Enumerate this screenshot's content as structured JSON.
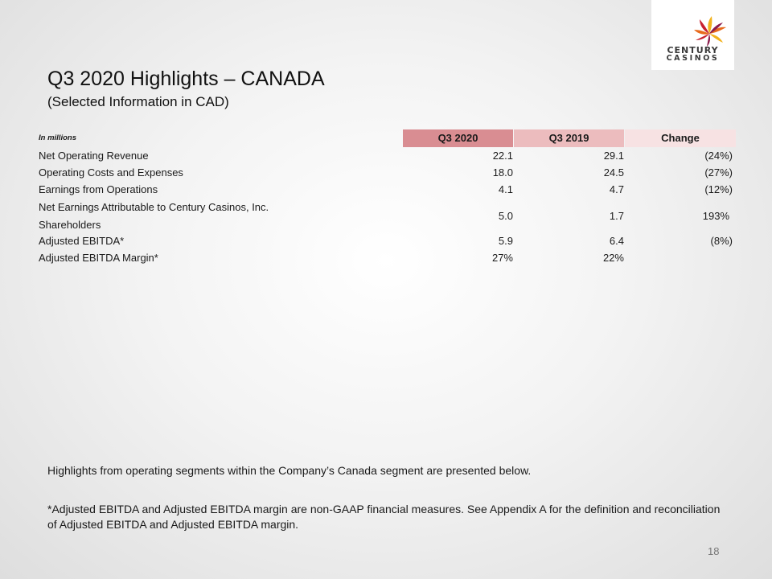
{
  "logo": {
    "line1": "CENTURY",
    "line2": "CASINOS",
    "colors": [
      "#f2b21b",
      "#e86a1c",
      "#c8202f",
      "#8b1a4a"
    ]
  },
  "title": "Q3 2020 Highlights – CANADA",
  "subtitle": "(Selected Information in CAD)",
  "table": {
    "label": "In millions",
    "headers": [
      "Q3 2020",
      "Q3 2019",
      "Change"
    ],
    "rows": [
      {
        "label": "Net Operating Revenue",
        "q3_2020": "22.1",
        "q3_2019": "29.1",
        "change": "(24%)"
      },
      {
        "label": "Operating Costs and Expenses",
        "q3_2020": "18.0",
        "q3_2019": "24.5",
        "change": "(27%)"
      },
      {
        "label": "Earnings from Operations",
        "q3_2020": "4.1",
        "q3_2019": "4.7",
        "change": "(12%)"
      },
      {
        "label": "Net Earnings Attributable to Century Casinos, Inc. Shareholders",
        "q3_2020": "5.0",
        "q3_2019": "1.7",
        "change": "193%"
      },
      {
        "label": "Adjusted EBITDA*",
        "q3_2020": "5.9",
        "q3_2019": "6.4",
        "change": "(8%)"
      },
      {
        "label": "Adjusted EBITDA Margin*",
        "q3_2020": "27%",
        "q3_2019": "22%",
        "change": ""
      }
    ]
  },
  "footer": {
    "highlights": "Highlights from operating segments within the Company’s Canada segment are presented below.",
    "note": "*Adjusted EBITDA and Adjusted EBITDA margin are non-GAAP financial measures. See Appendix A for the definition and reconciliation of Adjusted EBITDA and Adjusted EBITDA margin."
  },
  "page_number": "18"
}
